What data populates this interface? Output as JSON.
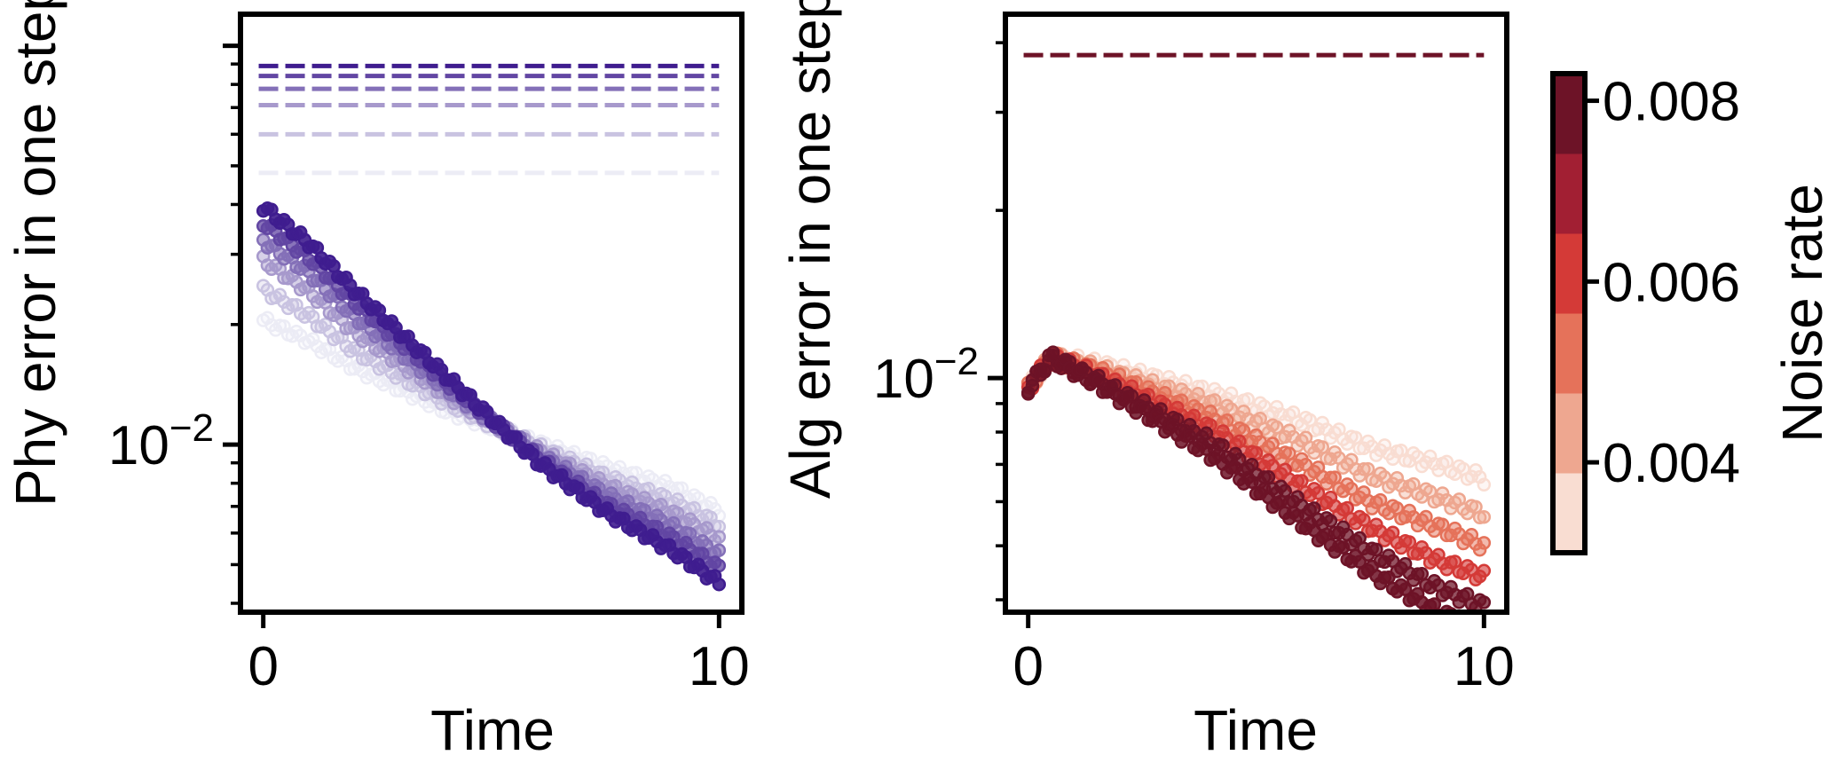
{
  "chart_data": [
    {
      "type": "scatter",
      "title": "",
      "xlabel": "Time",
      "ylabel": "Phy error in one step",
      "xlim": [
        -0.5,
        10.5
      ],
      "xticks": [
        0,
        10
      ],
      "xtick_labels": [
        "0",
        "10"
      ],
      "yscale": "log",
      "ylim": [
        0.0038,
        0.12
      ],
      "yticks": [
        0.01
      ],
      "ytick_labels": [
        "10",
        "−2"
      ],
      "grid": false,
      "color_ramp": [
        "#ececf5",
        "#3f1d8f"
      ],
      "series": [
        {
          "line_level": 0.048,
          "values": [
            0.0205,
            0.0182,
            0.0156,
            0.0122,
            0.0101,
            0.0088,
            0.0078,
            0.0068
          ]
        },
        {
          "line_level": 0.06,
          "values": [
            0.0245,
            0.021,
            0.0172,
            0.0128,
            0.0099,
            0.0083,
            0.0072,
            0.0063
          ]
        },
        {
          "line_level": 0.071,
          "values": [
            0.029,
            0.0243,
            0.0192,
            0.0134,
            0.0097,
            0.0079,
            0.0067,
            0.0058
          ]
        },
        {
          "line_level": 0.078,
          "values": [
            0.0325,
            0.027,
            0.021,
            0.0139,
            0.0095,
            0.0075,
            0.0062,
            0.0053
          ]
        },
        {
          "line_level": 0.084,
          "values": [
            0.036,
            0.0295,
            0.0228,
            0.0144,
            0.0093,
            0.0071,
            0.0058,
            0.0049
          ]
        },
        {
          "line_level": 0.089,
          "values": [
            0.0395,
            0.032,
            0.0244,
            0.0149,
            0.0091,
            0.0068,
            0.0054,
            0.0045
          ]
        }
      ],
      "x_points": [
        0,
        1,
        2,
        4,
        6,
        7.5,
        9,
        10
      ]
    },
    {
      "type": "scatter",
      "title": "",
      "xlabel": "Time",
      "ylabel": "Alg error in one step",
      "xlim": [
        -0.5,
        10.5
      ],
      "xticks": [
        0,
        10
      ],
      "xtick_labels": [
        "0",
        "10"
      ],
      "yscale": "log",
      "ylim": [
        0.0038,
        0.045
      ],
      "yticks": [
        0.01
      ],
      "ytick_labels": [
        "10",
        "−2"
      ],
      "grid": false,
      "reference_line": 0.038,
      "series": [
        {
          "noise": 0.0035,
          "values": [
            0.0096,
            0.0109,
            0.0106,
            0.0094,
            0.0084,
            0.0075,
            0.007,
            0.0066
          ]
        },
        {
          "noise": 0.0045,
          "values": [
            0.0096,
            0.0109,
            0.0104,
            0.009,
            0.0077,
            0.0067,
            0.0061,
            0.0057
          ]
        },
        {
          "noise": 0.0055,
          "values": [
            0.0096,
            0.0109,
            0.0103,
            0.0085,
            0.007,
            0.006,
            0.0054,
            0.005
          ]
        },
        {
          "noise": 0.0065,
          "values": [
            0.0096,
            0.0109,
            0.0101,
            0.0081,
            0.0064,
            0.0054,
            0.0047,
            0.0044
          ]
        },
        {
          "noise": 0.0075,
          "values": [
            0.0096,
            0.0109,
            0.0099,
            0.0077,
            0.0059,
            0.0049,
            0.0042,
            0.0039
          ]
        },
        {
          "noise": 0.0082,
          "values": [
            0.0096,
            0.0109,
            0.0098,
            0.0073,
            0.0055,
            0.0045,
            0.0038,
            0.0035
          ]
        }
      ],
      "x_points": [
        0,
        0.5,
        1.5,
        4,
        6,
        7.5,
        9,
        10
      ]
    }
  ],
  "colorbar": {
    "label": "Noise rate",
    "ticks": [
      0.004,
      0.006,
      0.008
    ],
    "tick_labels": [
      "0.004",
      "0.006",
      "0.008"
    ],
    "range": [
      0.003,
      0.0083
    ],
    "colors": [
      "#f9ddd2",
      "#eea790",
      "#e5725a",
      "#d43a37",
      "#a21f33",
      "#6d1327"
    ]
  }
}
